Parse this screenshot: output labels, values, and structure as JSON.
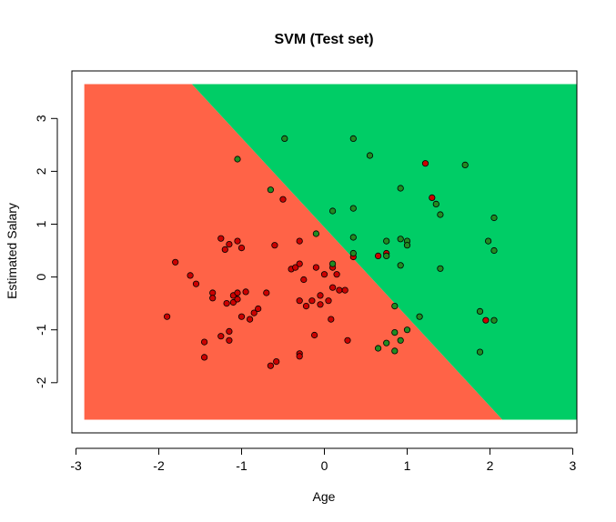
{
  "chart_data": {
    "type": "scatter",
    "title": "SVM (Test set)",
    "xlabel": "Age",
    "ylabel": "Estimated Salary",
    "xlim": [
      -3.05,
      3.05
    ],
    "ylim": [
      -2.95,
      3.9
    ],
    "xticks": [
      -3,
      -2,
      -1,
      0,
      1,
      2,
      3
    ],
    "yticks": [
      -2,
      -1,
      0,
      1,
      2,
      3
    ],
    "grid": false,
    "region": {
      "x_range": [
        -2.9,
        3.05
      ],
      "y_range": [
        -2.7,
        3.65
      ],
      "boundary": [
        [
          -1.6,
          3.65
        ],
        [
          2.15,
          -2.7
        ]
      ],
      "colors": {
        "class0": "#FF6347",
        "class1": "#00CD66"
      }
    },
    "point_colors": {
      "red": "#CC0000",
      "green": "#228B22"
    },
    "points": [
      {
        "x": -1.9,
        "y": -0.75,
        "c": "red"
      },
      {
        "x": -1.8,
        "y": 0.28,
        "c": "red"
      },
      {
        "x": -1.62,
        "y": 0.03,
        "c": "red"
      },
      {
        "x": -1.55,
        "y": -0.13,
        "c": "red"
      },
      {
        "x": -1.45,
        "y": -1.23,
        "c": "red"
      },
      {
        "x": -1.45,
        "y": -1.52,
        "c": "red"
      },
      {
        "x": -1.35,
        "y": -0.3,
        "c": "red"
      },
      {
        "x": -1.35,
        "y": -0.4,
        "c": "red"
      },
      {
        "x": -1.25,
        "y": 0.73,
        "c": "red"
      },
      {
        "x": -1.25,
        "y": -1.12,
        "c": "red"
      },
      {
        "x": -1.2,
        "y": 0.52,
        "c": "red"
      },
      {
        "x": -1.15,
        "y": 0.62,
        "c": "red"
      },
      {
        "x": -1.18,
        "y": -0.5,
        "c": "red"
      },
      {
        "x": -1.15,
        "y": -1.2,
        "c": "red"
      },
      {
        "x": -1.15,
        "y": -1.03,
        "c": "red"
      },
      {
        "x": -1.1,
        "y": -0.48,
        "c": "red"
      },
      {
        "x": -1.1,
        "y": -0.35,
        "c": "red"
      },
      {
        "x": -1.05,
        "y": 0.68,
        "c": "red"
      },
      {
        "x": -1.05,
        "y": -0.42,
        "c": "red"
      },
      {
        "x": -1.05,
        "y": -0.3,
        "c": "red"
      },
      {
        "x": -1.0,
        "y": 0.55,
        "c": "red"
      },
      {
        "x": -1.0,
        "y": -0.75,
        "c": "red"
      },
      {
        "x": -0.95,
        "y": -0.28,
        "c": "red"
      },
      {
        "x": -0.9,
        "y": -0.8,
        "c": "red"
      },
      {
        "x": -0.85,
        "y": -0.68,
        "c": "red"
      },
      {
        "x": -0.8,
        "y": -0.6,
        "c": "red"
      },
      {
        "x": -0.7,
        "y": -0.3,
        "c": "red"
      },
      {
        "x": -0.65,
        "y": -1.68,
        "c": "red"
      },
      {
        "x": -0.6,
        "y": 0.6,
        "c": "red"
      },
      {
        "x": -0.58,
        "y": -1.6,
        "c": "red"
      },
      {
        "x": -0.5,
        "y": 1.47,
        "c": "red"
      },
      {
        "x": -0.4,
        "y": 0.15,
        "c": "red"
      },
      {
        "x": -0.35,
        "y": 0.18,
        "c": "red"
      },
      {
        "x": -0.3,
        "y": 0.68,
        "c": "red"
      },
      {
        "x": -0.3,
        "y": 0.25,
        "c": "red"
      },
      {
        "x": -0.3,
        "y": -0.45,
        "c": "red"
      },
      {
        "x": -0.3,
        "y": -1.45,
        "c": "red"
      },
      {
        "x": -0.3,
        "y": -1.5,
        "c": "red"
      },
      {
        "x": -0.25,
        "y": -0.05,
        "c": "red"
      },
      {
        "x": -0.22,
        "y": -0.55,
        "c": "red"
      },
      {
        "x": -0.15,
        "y": -0.45,
        "c": "red"
      },
      {
        "x": -0.12,
        "y": -1.1,
        "c": "red"
      },
      {
        "x": -0.1,
        "y": 0.18,
        "c": "red"
      },
      {
        "x": -0.05,
        "y": -0.35,
        "c": "red"
      },
      {
        "x": -0.05,
        "y": -0.52,
        "c": "red"
      },
      {
        "x": 0.0,
        "y": 0.05,
        "c": "red"
      },
      {
        "x": 0.05,
        "y": -0.45,
        "c": "red"
      },
      {
        "x": 0.08,
        "y": -0.8,
        "c": "red"
      },
      {
        "x": 0.1,
        "y": 0.18,
        "c": "red"
      },
      {
        "x": 0.1,
        "y": -0.2,
        "c": "red"
      },
      {
        "x": 0.15,
        "y": 0.05,
        "c": "red"
      },
      {
        "x": 0.18,
        "y": -0.25,
        "c": "red"
      },
      {
        "x": 0.25,
        "y": -0.25,
        "c": "red"
      },
      {
        "x": 0.28,
        "y": -1.2,
        "c": "red"
      },
      {
        "x": 0.35,
        "y": 0.38,
        "c": "red"
      },
      {
        "x": 0.65,
        "y": 0.4,
        "c": "red"
      },
      {
        "x": 0.75,
        "y": 0.45,
        "c": "red"
      },
      {
        "x": 1.22,
        "y": 2.15,
        "c": "red"
      },
      {
        "x": 1.3,
        "y": 1.5,
        "c": "red"
      },
      {
        "x": 1.95,
        "y": -0.82,
        "c": "red"
      },
      {
        "x": -1.05,
        "y": 2.23,
        "c": "green"
      },
      {
        "x": -0.65,
        "y": 1.65,
        "c": "green"
      },
      {
        "x": -0.48,
        "y": 2.62,
        "c": "green"
      },
      {
        "x": -0.1,
        "y": 0.82,
        "c": "green"
      },
      {
        "x": 0.1,
        "y": 1.25,
        "c": "green"
      },
      {
        "x": 0.1,
        "y": 0.25,
        "c": "green"
      },
      {
        "x": 0.35,
        "y": 2.62,
        "c": "green"
      },
      {
        "x": 0.35,
        "y": 1.3,
        "c": "green"
      },
      {
        "x": 0.35,
        "y": 0.75,
        "c": "green"
      },
      {
        "x": 0.35,
        "y": 0.45,
        "c": "green"
      },
      {
        "x": 0.55,
        "y": 2.3,
        "c": "green"
      },
      {
        "x": 0.65,
        "y": -1.35,
        "c": "green"
      },
      {
        "x": 0.75,
        "y": 0.68,
        "c": "green"
      },
      {
        "x": 0.75,
        "y": 0.4,
        "c": "green"
      },
      {
        "x": 0.75,
        "y": -1.25,
        "c": "green"
      },
      {
        "x": 0.85,
        "y": -0.55,
        "c": "green"
      },
      {
        "x": 0.85,
        "y": -1.05,
        "c": "green"
      },
      {
        "x": 0.85,
        "y": -1.4,
        "c": "green"
      },
      {
        "x": 0.92,
        "y": 1.68,
        "c": "green"
      },
      {
        "x": 0.92,
        "y": 0.72,
        "c": "green"
      },
      {
        "x": 0.92,
        "y": 0.22,
        "c": "green"
      },
      {
        "x": 0.92,
        "y": -1.2,
        "c": "green"
      },
      {
        "x": 1.0,
        "y": 0.68,
        "c": "green"
      },
      {
        "x": 1.0,
        "y": 0.6,
        "c": "green"
      },
      {
        "x": 1.0,
        "y": -1.0,
        "c": "green"
      },
      {
        "x": 1.15,
        "y": -0.75,
        "c": "green"
      },
      {
        "x": 1.35,
        "y": 1.38,
        "c": "green"
      },
      {
        "x": 1.4,
        "y": 1.18,
        "c": "green"
      },
      {
        "x": 1.4,
        "y": 0.16,
        "c": "green"
      },
      {
        "x": 1.7,
        "y": 2.12,
        "c": "green"
      },
      {
        "x": 1.88,
        "y": -0.65,
        "c": "green"
      },
      {
        "x": 1.88,
        "y": -1.42,
        "c": "green"
      },
      {
        "x": 1.98,
        "y": 0.68,
        "c": "green"
      },
      {
        "x": 2.05,
        "y": 1.12,
        "c": "green"
      },
      {
        "x": 2.05,
        "y": 0.5,
        "c": "green"
      },
      {
        "x": 2.05,
        "y": -0.82,
        "c": "green"
      }
    ]
  }
}
